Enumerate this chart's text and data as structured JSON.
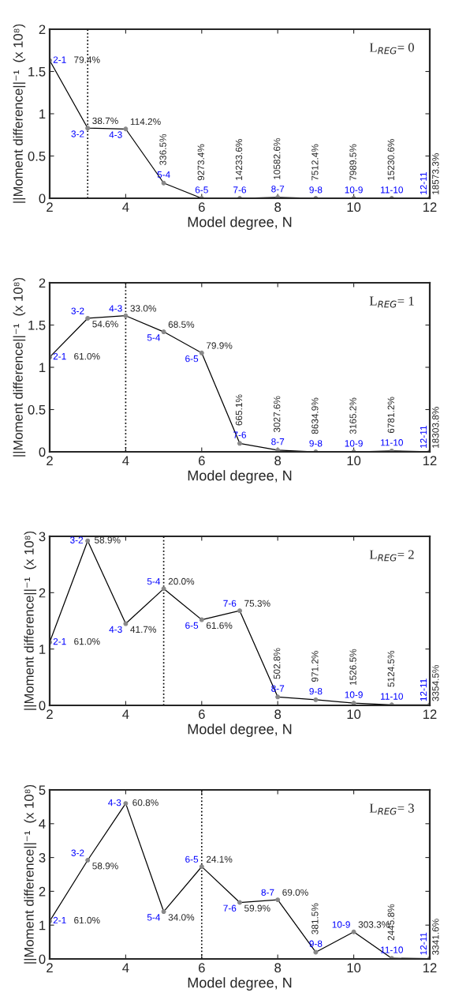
{
  "chart_data": [
    {
      "type": "line",
      "xlabel": "Model degree, N",
      "ylabel": "||Moment difference||⁻¹  (x 10⁸)",
      "x": [
        2,
        3,
        4,
        5,
        6,
        7,
        8,
        9,
        10,
        11,
        12
      ],
      "xlim": [
        2,
        12
      ],
      "xticks": [
        2,
        4,
        6,
        8,
        10,
        12
      ],
      "ylim": [
        0,
        2
      ],
      "yticks": [
        0,
        0.5,
        1,
        1.5,
        2
      ],
      "marker": "circle",
      "grid": false,
      "series": [
        {
          "color": "#000000",
          "values": [
            1.63,
            0.83,
            0.82,
            0.18,
            0,
            0,
            0.01,
            0,
            0,
            0,
            0
          ],
          "value_labels": [
            "2-1",
            "3-2",
            "4-3",
            "5-4",
            "6-5",
            "7-6",
            "8-7",
            "9-8",
            "10-9",
            "11-10",
            "12-11"
          ]
        }
      ],
      "ref_lines": [
        {
          "axis": "x",
          "value": 3,
          "line_style": "dotted"
        }
      ],
      "annotations": [
        "L$_{REG}$= 0",
        {
          "text": "79.4%",
          "x": 2,
          "y": 1.63
        },
        {
          "text": "38.7%",
          "x": 3,
          "y": 0.83
        },
        {
          "text": "114.2%",
          "x": 4,
          "y": 0.82
        },
        {
          "text": "336.5%",
          "x": 5,
          "y": 0.18
        },
        {
          "text": "9273.4%",
          "x": 6,
          "y": 0
        },
        {
          "text": "14233.6%",
          "x": 7,
          "y": 0
        },
        {
          "text": "10582.6%",
          "x": 8,
          "y": 0.01
        },
        {
          "text": "7512.4%",
          "x": 9,
          "y": 0
        },
        {
          "text": "7989.5%",
          "x": 10,
          "y": 0
        },
        {
          "text": "15230.6%",
          "x": 11,
          "y": 0
        },
        {
          "text": "18573.3%",
          "x": 12,
          "y": 0
        }
      ]
    },
    {
      "type": "line",
      "xlabel": "Model degree, N",
      "ylabel": "||Moment difference||⁻¹  (x 10⁸)",
      "x": [
        2,
        3,
        4,
        5,
        6,
        7,
        8,
        9,
        10,
        11,
        12
      ],
      "xlim": [
        2,
        12
      ],
      "xticks": [
        2,
        4,
        6,
        8,
        10,
        12
      ],
      "ylim": [
        0,
        2
      ],
      "yticks": [
        0,
        0.5,
        1,
        1.5,
        2
      ],
      "marker": "circle",
      "grid": false,
      "series": [
        {
          "color": "#000000",
          "values": [
            1.12,
            1.58,
            1.61,
            1.42,
            1.17,
            0.1,
            0.02,
            0,
            0,
            0.01,
            0
          ],
          "value_labels": [
            "2-1",
            "3-2",
            "4-3",
            "5-4",
            "6-5",
            "7-6",
            "8-7",
            "9-8",
            "10-9",
            "11-10",
            "12-11"
          ]
        }
      ],
      "ref_lines": [
        {
          "axis": "x",
          "value": 4,
          "line_style": "dotted"
        }
      ],
      "annotations": [
        "L$_{REG}$= 1",
        {
          "text": "61.0%",
          "x": 2,
          "y": 1.12
        },
        {
          "text": "54.6%",
          "x": 3,
          "y": 1.58
        },
        {
          "text": "33.0%",
          "x": 4,
          "y": 1.61
        },
        {
          "text": "68.5%",
          "x": 5,
          "y": 1.42
        },
        {
          "text": "79.9%",
          "x": 6,
          "y": 1.17
        },
        {
          "text": "665.1%",
          "x": 7,
          "y": 0.1
        },
        {
          "text": "3027.6%",
          "x": 8,
          "y": 0.02
        },
        {
          "text": "8634.9%",
          "x": 9,
          "y": 0
        },
        {
          "text": "3165.2%",
          "x": 10,
          "y": 0
        },
        {
          "text": "6781.2%",
          "x": 11,
          "y": 0.01
        },
        {
          "text": "18303.8%",
          "x": 12,
          "y": 0
        }
      ]
    },
    {
      "type": "line",
      "xlabel": "Model degree, N",
      "ylabel": "||Moment difference||⁻¹  (x 10⁸)",
      "x": [
        2,
        3,
        4,
        5,
        6,
        7,
        8,
        9,
        10,
        11,
        12
      ],
      "xlim": [
        2,
        12
      ],
      "xticks": [
        2,
        4,
        6,
        8,
        10,
        12
      ],
      "ylim": [
        0,
        3
      ],
      "yticks": [
        0,
        1,
        2,
        3
      ],
      "marker": "circle",
      "grid": false,
      "series": [
        {
          "color": "#000000",
          "values": [
            1.12,
            2.92,
            1.45,
            2.07,
            1.52,
            1.68,
            0.15,
            0.1,
            0.04,
            0.01,
            0.01
          ],
          "value_labels": [
            "2-1",
            "3-2",
            "4-3",
            "5-4",
            "6-5",
            "7-6",
            "8-7",
            "9-8",
            "10-9",
            "11-10",
            "12-11"
          ]
        }
      ],
      "ref_lines": [
        {
          "axis": "x",
          "value": 5,
          "line_style": "dotted"
        }
      ],
      "annotations": [
        "L$_{REG}$= 2",
        {
          "text": "61.0%",
          "x": 2,
          "y": 1.12
        },
        {
          "text": "58.9%",
          "x": 3,
          "y": 2.92
        },
        {
          "text": "41.7%",
          "x": 4,
          "y": 1.45
        },
        {
          "text": "20.0%",
          "x": 5,
          "y": 2.07
        },
        {
          "text": "61.6%",
          "x": 6,
          "y": 1.52
        },
        {
          "text": "75.3%",
          "x": 7,
          "y": 1.68
        },
        {
          "text": "502.8%",
          "x": 8,
          "y": 0.15
        },
        {
          "text": "971.2%",
          "x": 9,
          "y": 0.1
        },
        {
          "text": "1526.5%",
          "x": 10,
          "y": 0.04
        },
        {
          "text": "5124.5%",
          "x": 11,
          "y": 0.01
        },
        {
          "text": "3354.5%",
          "x": 12,
          "y": 0.01
        }
      ]
    },
    {
      "type": "line",
      "xlabel": "Model degree, N",
      "ylabel": "||Moment difference||⁻¹  (x 10⁸)",
      "x": [
        2,
        3,
        4,
        5,
        6,
        7,
        8,
        9,
        10,
        11,
        12
      ],
      "xlim": [
        2,
        12
      ],
      "xticks": [
        2,
        4,
        6,
        8,
        10,
        12
      ],
      "ylim": [
        0,
        5
      ],
      "yticks": [
        0,
        1,
        2,
        3,
        4,
        5
      ],
      "marker": "circle",
      "grid": false,
      "series": [
        {
          "color": "#000000",
          "values": [
            1.12,
            2.92,
            4.6,
            1.4,
            2.73,
            1.67,
            1.75,
            0.2,
            0.8,
            0.02,
            0.01
          ],
          "value_labels": [
            "2-1",
            "3-2",
            "4-3",
            "5-4",
            "6-5",
            "7-6",
            "8-7",
            "9-8",
            "10-9",
            "11-10",
            "12-11"
          ]
        }
      ],
      "ref_lines": [
        {
          "axis": "x",
          "value": 6,
          "line_style": "dotted"
        }
      ],
      "annotations": [
        "L$_{REG}$= 3",
        {
          "text": "61.0%",
          "x": 2,
          "y": 1.12
        },
        {
          "text": "58.9%",
          "x": 3,
          "y": 2.92
        },
        {
          "text": "60.8%",
          "x": 4,
          "y": 4.6
        },
        {
          "text": "34.0%",
          "x": 5,
          "y": 1.4
        },
        {
          "text": "24.1%",
          "x": 6,
          "y": 2.73
        },
        {
          "text": "59.9%",
          "x": 7,
          "y": 1.67
        },
        {
          "text": "69.0%",
          "x": 8,
          "y": 1.75
        },
        {
          "text": "381.5%",
          "x": 9,
          "y": 0.2
        },
        {
          "text": "303.3%",
          "x": 10,
          "y": 0.8
        },
        {
          "text": "2445.8%",
          "x": 11,
          "y": 0.02
        },
        {
          "text": "3341.6%",
          "x": 12,
          "y": 0.01
        }
      ]
    }
  ]
}
